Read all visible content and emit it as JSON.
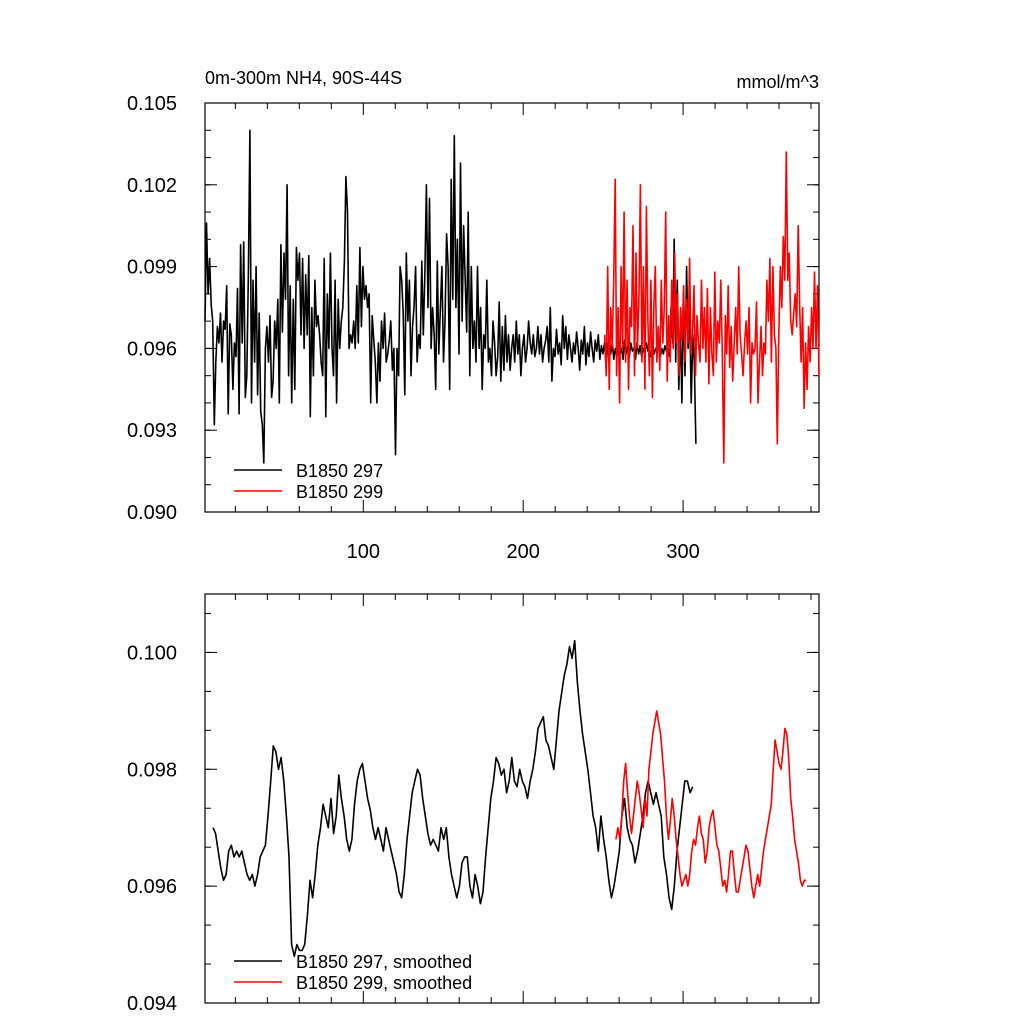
{
  "chart_data": [
    {
      "type": "line",
      "title": "0m-300m NH4, 90S-44S",
      "units": "mmol/m^3",
      "xlim": [
        1,
        385
      ],
      "ylim": [
        0.09,
        0.105
      ],
      "xticks": [
        100,
        200,
        300
      ],
      "yticks": [
        0.09,
        0.093,
        0.096,
        0.099,
        0.102,
        0.105
      ],
      "ytick_labels": [
        "0.090",
        "0.093",
        "0.096",
        "0.099",
        "0.102",
        "0.105"
      ],
      "legend_position": "bottom-left",
      "series": [
        {
          "name": "B1850 297",
          "color": "#000000",
          "x_start": 1,
          "values": [
            0.097,
            0.1006,
            0.098,
            0.0993,
            0.0976,
            0.097,
            0.0932,
            0.0955,
            0.0968,
            0.0962,
            0.0973,
            0.0955,
            0.097,
            0.0967,
            0.0983,
            0.0936,
            0.0969,
            0.0965,
            0.0945,
            0.0962,
            0.0957,
            0.0982,
            0.0936,
            0.0998,
            0.0962,
            0.0999,
            0.0942,
            0.095,
            0.0988,
            0.104,
            0.094,
            0.0985,
            0.0955,
            0.099,
            0.0943,
            0.0973,
            0.0937,
            0.0932,
            0.0918,
            0.096,
            0.0968,
            0.0955,
            0.0972,
            0.0942,
            0.0948,
            0.097,
            0.096,
            0.0978,
            0.094,
            0.0998,
            0.0966,
            0.0995,
            0.0978,
            0.102,
            0.095,
            0.0983,
            0.094,
            0.0978,
            0.0945,
            0.0997,
            0.0985,
            0.0995,
            0.0965,
            0.0993,
            0.096,
            0.0987,
            0.0965,
            0.0994,
            0.0935,
            0.0975,
            0.095,
            0.0985,
            0.0968,
            0.0972,
            0.0965,
            0.0955,
            0.095,
            0.0993,
            0.0935,
            0.098,
            0.096,
            0.0995,
            0.096,
            0.095,
            0.0985,
            0.094,
            0.0978,
            0.096,
            0.097,
            0.0975,
            0.0992,
            0.1023,
            0.101,
            0.096,
            0.0965,
            0.0962,
            0.097,
            0.096,
            0.0983,
            0.0962,
            0.0997,
            0.0968,
            0.099,
            0.0978,
            0.0983,
            0.0975,
            0.098,
            0.094,
            0.0972,
            0.0963,
            0.0955,
            0.094,
            0.0962,
            0.0948,
            0.097,
            0.096,
            0.0973,
            0.0955,
            0.0958,
            0.0963,
            0.097,
            0.0952,
            0.096,
            0.0921,
            0.096,
            0.095,
            0.099,
            0.0985,
            0.0973,
            0.0943,
            0.0995,
            0.097,
            0.0985,
            0.095,
            0.0968,
            0.0975,
            0.099,
            0.0955,
            0.0965,
            0.096,
            0.0992,
            0.0965,
            0.0988,
            0.102,
            0.0975,
            0.1015,
            0.096,
            0.0975,
            0.0965,
            0.0945,
            0.0992,
            0.0958,
            0.0975,
            0.099,
            0.0955,
            0.097,
            0.1002,
            0.099,
            0.0945,
            0.1022,
            0.0978,
            0.1038,
            0.0975,
            0.1,
            0.0958,
            0.1028,
            0.097,
            0.1005,
            0.0985,
            0.0966,
            0.101,
            0.095,
            0.099,
            0.096,
            0.097,
            0.0955,
            0.099,
            0.096,
            0.0975,
            0.0945,
            0.0965,
            0.096,
            0.0985,
            0.0955,
            0.096,
            0.095,
            0.097,
            0.0962,
            0.095,
            0.0957,
            0.0977,
            0.0948,
            0.0968,
            0.0952,
            0.0972,
            0.0955,
            0.0965,
            0.0952,
            0.096,
            0.0965,
            0.0955,
            0.097,
            0.0958,
            0.0965,
            0.095,
            0.096,
            0.0965,
            0.0955,
            0.096,
            0.097,
            0.0962,
            0.0958,
            0.0965,
            0.0957,
            0.096,
            0.0968,
            0.0958,
            0.0965,
            0.0955,
            0.096,
            0.0963,
            0.0968,
            0.0955,
            0.0975,
            0.0948,
            0.096,
            0.0957,
            0.0967,
            0.0958,
            0.0962,
            0.0954,
            0.0972,
            0.096,
            0.0968,
            0.0956,
            0.0965,
            0.096,
            0.0955,
            0.0962,
            0.0958,
            0.0966,
            0.096,
            0.0952,
            0.0963,
            0.0958,
            0.0968,
            0.0954,
            0.0962,
            0.0957,
            0.0966,
            0.096,
            0.0955,
            0.0963,
            0.0959,
            0.0965,
            0.0956,
            0.0961,
            0.0958,
            0.0962,
            0.0954,
            0.096,
            0.0964,
            0.0958,
            0.0962,
            0.0956,
            0.096,
            0.0957,
            0.0962,
            0.0958,
            0.096,
            0.0956,
            0.0963,
            0.0958,
            0.0961,
            0.0957,
            0.0962,
            0.0959,
            0.096,
            0.0956,
            0.0962,
            0.0958,
            0.0961,
            0.0957,
            0.096,
            0.0958,
            0.0962,
            0.0959,
            0.096,
            0.0957,
            0.0961,
            0.0958,
            0.096,
            0.0959,
            0.0961,
            0.0957,
            0.096,
            0.0958,
            0.0961,
            0.0959,
            0.096,
            0.0957,
            0.0975,
            0.0962,
            0.1,
            0.0955,
            0.0985,
            0.0945,
            0.0968,
            0.094,
            0.098,
            0.095,
            0.099,
            0.096,
            0.0975,
            0.094,
            0.0965,
            0.0955,
            0.0925
          ]
        },
        {
          "name": "B1850 299",
          "color": "#ff0000",
          "x_start": 251,
          "values": [
            0.0965,
            0.095,
            0.099,
            0.0945,
            0.0975,
            0.096,
            0.0985,
            0.1022,
            0.095,
            0.0975,
            0.094,
            0.099,
            0.096,
            0.101,
            0.0955,
            0.0985,
            0.0945,
            0.0975,
            0.0968,
            0.1005,
            0.095,
            0.0995,
            0.096,
            0.098,
            0.102,
            0.0955,
            0.099,
            0.0945,
            0.1012,
            0.097,
            0.095,
            0.0985,
            0.0942,
            0.0975,
            0.099,
            0.0955,
            0.0968,
            0.0952,
            0.0985,
            0.0962,
            0.0975,
            0.101,
            0.0948,
            0.0972,
            0.0955,
            0.0985,
            0.096,
            0.0995,
            0.0962,
            0.098,
            0.095,
            0.0975,
            0.0963,
            0.0983,
            0.0955,
            0.0978,
            0.0962,
            0.0993,
            0.0958,
            0.0965,
            0.0983,
            0.095,
            0.0972,
            0.0962,
            0.0955,
            0.0985,
            0.096,
            0.0975,
            0.0955,
            0.0982,
            0.0947,
            0.0975,
            0.0958,
            0.095,
            0.0988,
            0.0955,
            0.097,
            0.0962,
            0.0985,
            0.0958,
            0.0918,
            0.0972,
            0.0958,
            0.0983,
            0.0953,
            0.0968,
            0.0948,
            0.0962,
            0.0975,
            0.0958,
            0.099,
            0.0965,
            0.0958,
            0.095,
            0.0962,
            0.097,
            0.0958,
            0.0975,
            0.094,
            0.0962,
            0.0958,
            0.096,
            0.0977,
            0.094,
            0.0955,
            0.0968,
            0.095,
            0.0962,
            0.0958,
            0.0985,
            0.097,
            0.0993,
            0.0955,
            0.099,
            0.0965,
            0.096,
            0.0925,
            0.0965,
            0.099,
            0.0975,
            0.1001,
            0.0985,
            0.1032,
            0.0985,
            0.0995,
            0.097,
            0.0965,
            0.0973,
            0.098,
            0.0968,
            0.1005,
            0.0975,
            0.0955,
            0.0975,
            0.0938,
            0.0962,
            0.0945,
            0.0968,
            0.0955,
            0.0975,
            0.096,
            0.0988,
            0.096,
            0.0983,
            0.095
          ]
        }
      ]
    },
    {
      "type": "line",
      "title": "",
      "xlim": [
        1,
        385
      ],
      "ylim": [
        0.094,
        0.101
      ],
      "xticks": [
        100,
        200,
        300
      ],
      "yticks": [
        0.094,
        0.096,
        0.098,
        0.1
      ],
      "ytick_labels": [
        "0.094",
        "0.096",
        "0.098",
        "0.100"
      ],
      "legend_position": "bottom-left",
      "series": [
        {
          "name": "B1850 297, smoothed",
          "color": "#000000",
          "x_start": 6,
          "values": [
            0.097,
            0.0969,
            0.0966,
            0.0963,
            0.0961,
            0.0962,
            0.0966,
            0.0967,
            0.0965,
            0.0966,
            0.0965,
            0.0966,
            0.0964,
            0.0962,
            0.0961,
            0.0962,
            0.096,
            0.0962,
            0.0965,
            0.0966,
            0.0967,
            0.0972,
            0.0978,
            0.0984,
            0.0983,
            0.098,
            0.0982,
            0.0978,
            0.0972,
            0.0965,
            0.095,
            0.0948,
            0.095,
            0.0949,
            0.0949,
            0.095,
            0.0955,
            0.0961,
            0.0958,
            0.0962,
            0.0967,
            0.097,
            0.0974,
            0.0972,
            0.097,
            0.0975,
            0.0969,
            0.0972,
            0.0979,
            0.0975,
            0.0972,
            0.0968,
            0.0966,
            0.0968,
            0.0974,
            0.0978,
            0.098,
            0.0981,
            0.0978,
            0.0975,
            0.0973,
            0.097,
            0.0968,
            0.097,
            0.0968,
            0.0966,
            0.097,
            0.0968,
            0.0966,
            0.0964,
            0.0962,
            0.0959,
            0.0958,
            0.0962,
            0.0968,
            0.0972,
            0.0976,
            0.0978,
            0.098,
            0.0979,
            0.0975,
            0.0972,
            0.0969,
            0.0967,
            0.0968,
            0.0967,
            0.0966,
            0.097,
            0.0968,
            0.097,
            0.0965,
            0.0962,
            0.096,
            0.0958,
            0.096,
            0.0964,
            0.0965,
            0.0965,
            0.096,
            0.0958,
            0.0962,
            0.096,
            0.0957,
            0.0959,
            0.0965,
            0.097,
            0.0975,
            0.0978,
            0.0982,
            0.0981,
            0.0979,
            0.098,
            0.0976,
            0.0978,
            0.0982,
            0.0978,
            0.0977,
            0.098,
            0.0978,
            0.0977,
            0.0975,
            0.0978,
            0.098,
            0.0983,
            0.0987,
            0.0988,
            0.0989,
            0.0985,
            0.0984,
            0.0982,
            0.098,
            0.0985,
            0.099,
            0.0993,
            0.0996,
            0.0998,
            0.1001,
            0.0999,
            0.1002,
            0.0995,
            0.099,
            0.0986,
            0.0983,
            0.098,
            0.0976,
            0.0972,
            0.097,
            0.0966,
            0.0972,
            0.0968,
            0.0965,
            0.0961,
            0.0958,
            0.096,
            0.0963,
            0.0966,
            0.0972,
            0.0975,
            0.097,
            0.0968,
            0.0967,
            0.0964,
            0.0966,
            0.0969,
            0.0972,
            0.0976,
            0.0978,
            0.0976,
            0.0974,
            0.0976,
            0.0974,
            0.0972,
            0.0965,
            0.0962,
            0.0958,
            0.0956,
            0.096,
            0.0966,
            0.097,
            0.0974,
            0.0978,
            0.0978,
            0.0976,
            0.0977
          ]
        },
        {
          "name": "B1850 299, smoothed",
          "color": "#ff0000",
          "x_start": 258,
          "values": [
            0.0968,
            0.097,
            0.0968,
            0.0972,
            0.0978,
            0.0981,
            0.0976,
            0.0972,
            0.0969,
            0.0972,
            0.0975,
            0.0978,
            0.0976,
            0.0973,
            0.097,
            0.0975,
            0.0972,
            0.098,
            0.0983,
            0.0986,
            0.0988,
            0.099,
            0.0988,
            0.0986,
            0.0982,
            0.0978,
            0.0972,
            0.0968,
            0.0971,
            0.0975,
            0.0972,
            0.0968,
            0.0965,
            0.0962,
            0.096,
            0.0961,
            0.0962,
            0.096,
            0.0962,
            0.0966,
            0.0968,
            0.0967,
            0.097,
            0.0972,
            0.0969,
            0.0968,
            0.0964,
            0.0966,
            0.097,
            0.0972,
            0.0973,
            0.097,
            0.0967,
            0.0966,
            0.0963,
            0.096,
            0.0961,
            0.0959,
            0.0962,
            0.0966,
            0.0966,
            0.0962,
            0.0959,
            0.0959,
            0.0961,
            0.0963,
            0.0965,
            0.0967,
            0.0966,
            0.0963,
            0.096,
            0.0958,
            0.096,
            0.0962,
            0.096,
            0.0963,
            0.0966,
            0.0968,
            0.097,
            0.0972,
            0.0974,
            0.098,
            0.0985,
            0.0983,
            0.0981,
            0.098,
            0.0983,
            0.0987,
            0.0986,
            0.0982,
            0.0975,
            0.0972,
            0.0968,
            0.0966,
            0.0964,
            0.0961,
            0.096,
            0.0961,
            0.0961
          ]
        }
      ]
    }
  ]
}
